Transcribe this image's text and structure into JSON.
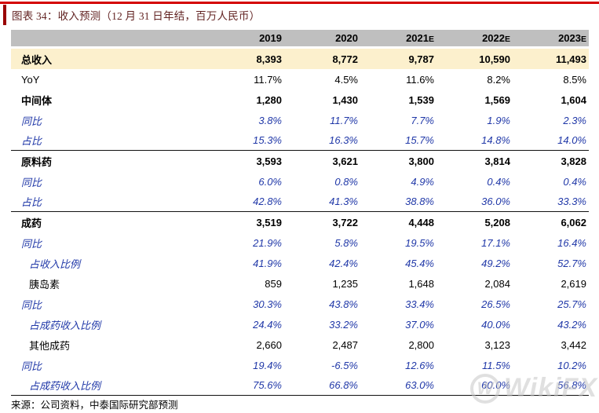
{
  "figure": {
    "title": "图表 34：收入预测（12 月 31 日年结，百万人民币）",
    "source": "来源：公司资料，中泰国际研究部预测"
  },
  "watermark": {
    "logo": "W",
    "text": "WikiFX"
  },
  "colors": {
    "accent_red_top": "#d40000",
    "accent_red_bar": "#9a0000",
    "title_text": "#632423",
    "header_bg": "#bfbfbf",
    "highlight_row_bg": "#fcf0cd",
    "blue_text": "#2038a8"
  },
  "chart_data": {
    "type": "table",
    "figure_label": "图表 34",
    "title": "收入预测（12 月 31 日年结，百万人民币）",
    "columns": [
      "2019",
      "2020",
      "2021E",
      "2022E",
      "2023E"
    ],
    "rows": [
      {
        "label": "总收入",
        "style": "bold",
        "highlight": true,
        "indent": 0,
        "values": [
          "8,393",
          "8,772",
          "9,787",
          "10,590",
          "11,493"
        ]
      },
      {
        "label": "YoY",
        "style": "regular",
        "indent": 0,
        "values": [
          "11.7%",
          "4.5%",
          "11.6%",
          "8.2%",
          "8.5%"
        ]
      },
      {
        "label": "中间体",
        "style": "bold",
        "indent": 0,
        "values": [
          "1,280",
          "1,430",
          "1,539",
          "1,569",
          "1,604"
        ]
      },
      {
        "label": "同比",
        "style": "blue-italic",
        "indent": 0,
        "values": [
          "3.8%",
          "11.7%",
          "7.7%",
          "1.9%",
          "2.3%"
        ]
      },
      {
        "label": "占比",
        "style": "blue-italic",
        "indent": 0,
        "separator_below": true,
        "values": [
          "15.3%",
          "16.3%",
          "15.7%",
          "14.8%",
          "14.0%"
        ]
      },
      {
        "label": "原料药",
        "style": "bold",
        "indent": 0,
        "values": [
          "3,593",
          "3,621",
          "3,800",
          "3,814",
          "3,828"
        ]
      },
      {
        "label": "同比",
        "style": "blue-italic",
        "indent": 0,
        "values": [
          "6.0%",
          "0.8%",
          "4.9%",
          "0.4%",
          "0.4%"
        ]
      },
      {
        "label": "占比",
        "style": "blue-italic",
        "indent": 0,
        "separator_below": true,
        "values": [
          "42.8%",
          "41.3%",
          "38.8%",
          "36.0%",
          "33.3%"
        ]
      },
      {
        "label": "成药",
        "style": "bold",
        "indent": 0,
        "values": [
          "3,519",
          "3,722",
          "4,448",
          "5,208",
          "6,062"
        ]
      },
      {
        "label": "同比",
        "style": "blue-italic",
        "indent": 0,
        "values": [
          "21.9%",
          "5.8%",
          "19.5%",
          "17.1%",
          "16.4%"
        ]
      },
      {
        "label": "占收入比例",
        "style": "blue-italic",
        "indent": 1,
        "values": [
          "41.9%",
          "42.4%",
          "45.4%",
          "49.2%",
          "52.7%"
        ]
      },
      {
        "label": "胰岛素",
        "style": "regular",
        "indent": 1,
        "values": [
          "859",
          "1,235",
          "1,648",
          "2,084",
          "2,619"
        ]
      },
      {
        "label": "同比",
        "style": "blue-italic",
        "indent": 0,
        "values": [
          "30.3%",
          "43.8%",
          "33.4%",
          "26.5%",
          "25.7%"
        ]
      },
      {
        "label": "占成药收入比例",
        "style": "blue-italic",
        "indent": 1,
        "values": [
          "24.4%",
          "33.2%",
          "37.0%",
          "40.0%",
          "43.2%"
        ]
      },
      {
        "label": "其他成药",
        "style": "regular",
        "indent": 1,
        "values": [
          "2,660",
          "2,487",
          "2,800",
          "3,123",
          "3,442"
        ]
      },
      {
        "label": "同比",
        "style": "blue-italic",
        "indent": 0,
        "values": [
          "19.4%",
          "-6.5%",
          "12.6%",
          "11.5%",
          "10.2%"
        ]
      },
      {
        "label": "占成药收入比例",
        "style": "blue-italic",
        "indent": 1,
        "bottom_rule": true,
        "values": [
          "75.6%",
          "66.8%",
          "63.0%",
          "60.0%",
          "56.8%"
        ]
      }
    ]
  }
}
